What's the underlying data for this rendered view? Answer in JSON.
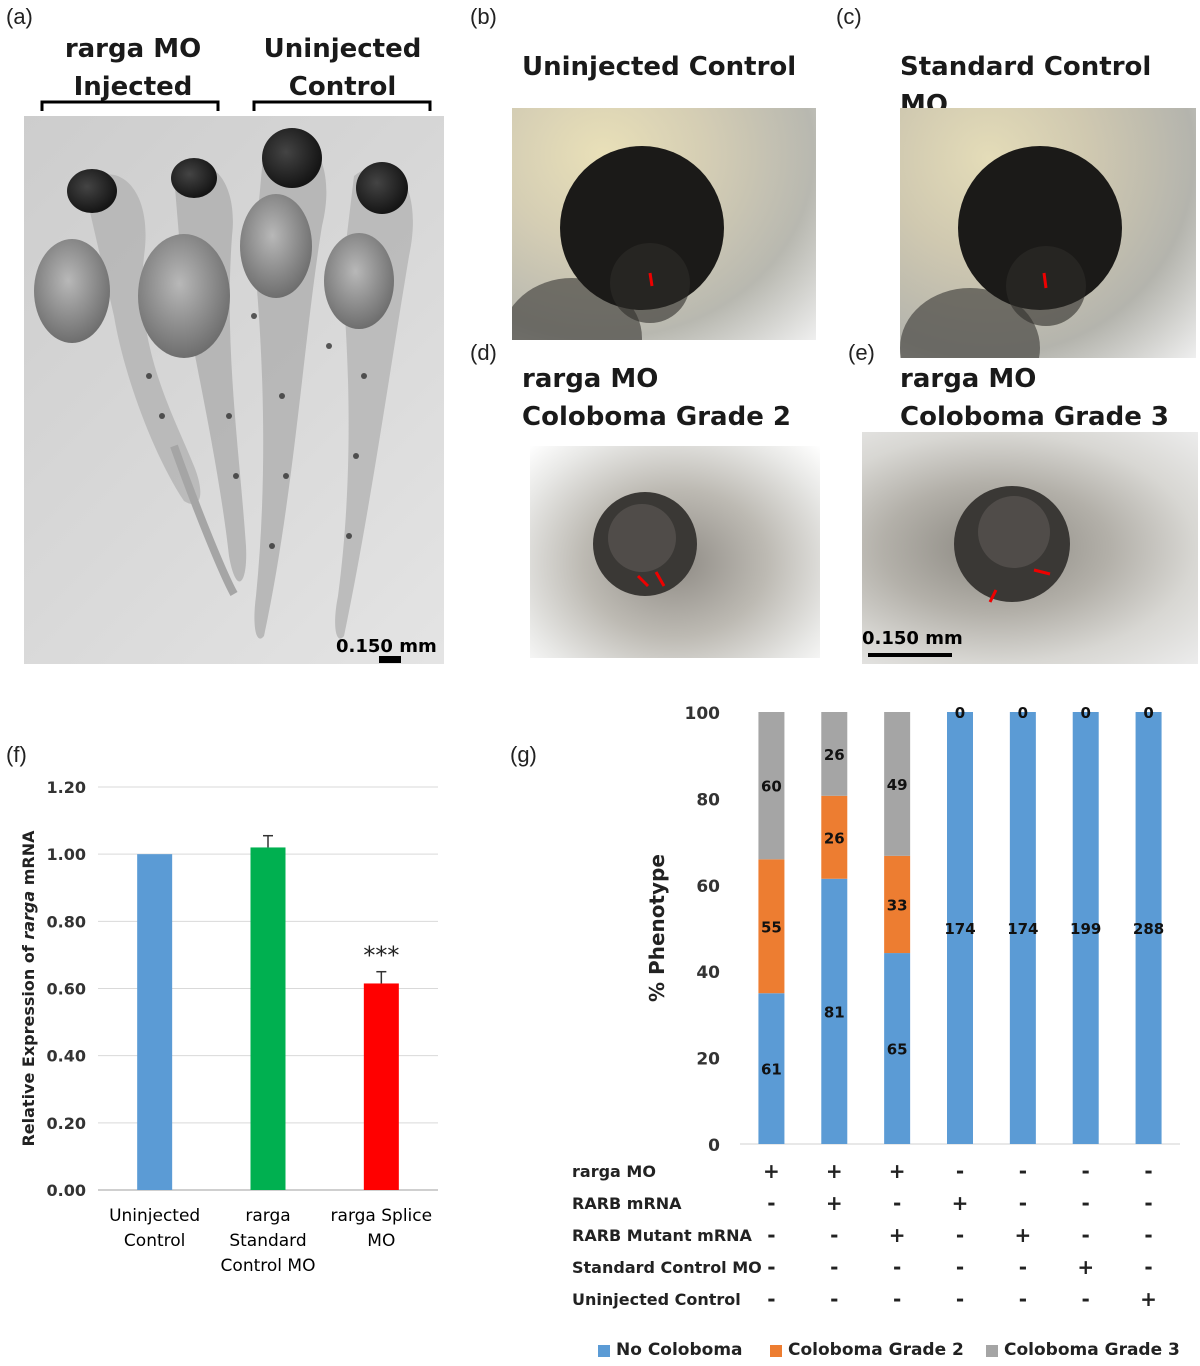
{
  "panels": {
    "a": {
      "label": "(a)",
      "group1": [
        "rarga MO",
        "Injected"
      ],
      "group2": [
        "Uninjected",
        "Control"
      ],
      "scale": "0.150 mm"
    },
    "b": {
      "label": "(b)",
      "title": "Uninjected Control"
    },
    "c": {
      "label": "(c)",
      "title": "Standard Control MO"
    },
    "d": {
      "label": "(d)",
      "title": [
        "rarga MO",
        "Coloboma Grade 2"
      ]
    },
    "e": {
      "label": "(e)",
      "title": [
        "rarga MO",
        "Coloboma Grade 3"
      ],
      "scale": "0.150 mm"
    },
    "f": {
      "label": "(f)"
    },
    "g": {
      "label": "(g)"
    }
  },
  "chart_data": [
    {
      "panel": "f",
      "type": "bar",
      "ylabel_parts": [
        "Relative Expression of ",
        "rarga",
        " mRNA"
      ],
      "ylim": [
        0,
        1.2
      ],
      "yticks": [
        "0.00",
        "0.20",
        "0.40",
        "0.60",
        "0.80",
        "1.00",
        "1.20"
      ],
      "grid": true,
      "categories": [
        [
          "Uninjected",
          "Control"
        ],
        [
          "rarga",
          "Standard",
          "Control MO"
        ],
        [
          "rarga Splice",
          "MO"
        ]
      ],
      "values": [
        1.0,
        1.02,
        0.615
      ],
      "errors": [
        0.0,
        0.035,
        0.035
      ],
      "colors": [
        "#5b9bd5",
        "#00b050",
        "#ff0000"
      ],
      "annotations": [
        {
          "bar": 2,
          "text": "***"
        }
      ]
    },
    {
      "panel": "g",
      "type": "bar",
      "stacked": true,
      "ylabel": "% Phenotype",
      "ylim": [
        0,
        100
      ],
      "yticks": [
        "0",
        "20",
        "40",
        "60",
        "80",
        "100"
      ],
      "series": [
        {
          "name": "No Coloboma",
          "color": "#5b9bd5",
          "percent": [
            34.9,
            61.4,
            44.2,
            100,
            100,
            100,
            100
          ],
          "labels": [
            "61",
            "81",
            "65",
            "174",
            "174",
            "199",
            "288"
          ]
        },
        {
          "name": "Coloboma Grade 2",
          "color": "#ed7d31",
          "percent": [
            31.0,
            19.2,
            22.5,
            0,
            0,
            0,
            0
          ],
          "labels": [
            "55",
            "26",
            "33",
            "",
            "",
            "",
            ""
          ]
        },
        {
          "name": "Coloboma Grade 3",
          "color": "#a5a5a5",
          "percent": [
            34.1,
            19.4,
            33.3,
            0,
            0,
            0,
            0
          ],
          "labels": [
            "60",
            "26",
            "49",
            "0",
            "0",
            "0",
            "0"
          ]
        }
      ],
      "conditions": [
        {
          "name": "rarga MO",
          "marks": [
            "+",
            "+",
            "+",
            "-",
            "-",
            "-",
            "-"
          ]
        },
        {
          "name": "RARB mRNA",
          "marks": [
            "-",
            "+",
            "-",
            "+",
            "-",
            "-",
            "-"
          ]
        },
        {
          "name": "RARB Mutant mRNA",
          "marks": [
            "-",
            "-",
            "+",
            "-",
            "+",
            "-",
            "-"
          ]
        },
        {
          "name": "Standard Control MO",
          "marks": [
            "-",
            "-",
            "-",
            "-",
            "-",
            "+",
            "-"
          ]
        },
        {
          "name": "Uninjected Control",
          "marks": [
            "-",
            "-",
            "-",
            "-",
            "-",
            "-",
            "+"
          ]
        }
      ],
      "legend_position": "bottom"
    }
  ]
}
